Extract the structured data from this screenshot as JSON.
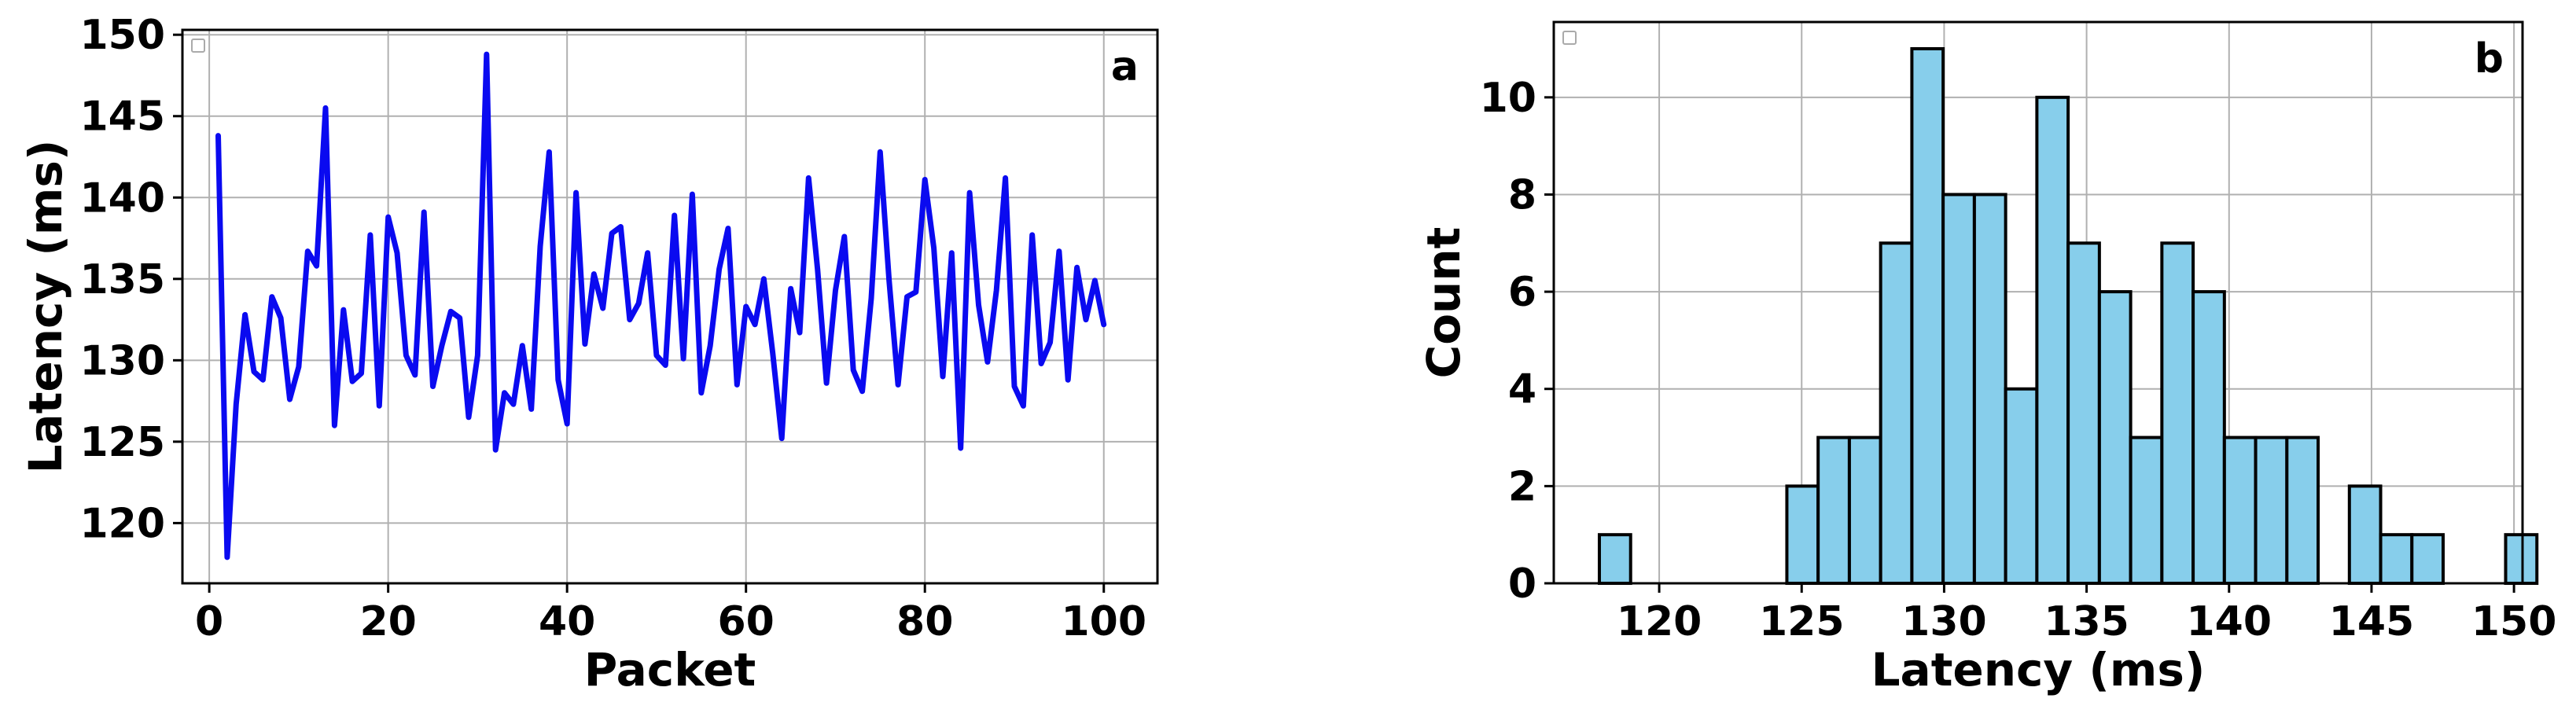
{
  "chart_data": [
    {
      "type": "line",
      "panel_label": "a",
      "xlabel": "Packet",
      "ylabel": "Latency (ms)",
      "xlim": [
        -3,
        106
      ],
      "ylim": [
        116.3,
        150.3
      ],
      "xticks": [
        0,
        20,
        40,
        60,
        80,
        100
      ],
      "yticks": [
        120,
        125,
        130,
        135,
        140,
        145,
        150
      ],
      "grid": true,
      "legend": "top-left (empty)",
      "colors": {
        "line": "#0a0af0"
      },
      "series": [
        {
          "x": [
            1,
            2,
            3,
            4,
            5,
            6,
            7,
            8,
            9,
            10,
            11,
            12,
            13,
            14,
            15,
            16,
            17,
            18,
            19,
            20,
            21,
            22,
            23,
            24,
            25,
            26,
            27,
            28,
            29,
            30,
            31,
            32,
            33,
            34,
            35,
            36,
            37,
            38,
            39,
            40,
            41,
            42,
            43,
            44,
            45,
            46,
            47,
            48,
            49,
            50,
            51,
            52,
            53,
            54,
            55,
            56,
            57,
            58,
            59,
            60,
            61,
            62,
            63,
            64,
            65,
            66,
            67,
            68,
            69,
            70,
            71,
            72,
            73,
            74,
            75,
            76,
            77,
            78,
            79,
            80,
            81,
            82,
            83,
            84,
            85,
            86,
            87,
            88,
            89,
            90,
            91,
            92,
            93,
            94,
            95,
            96,
            97,
            98,
            99,
            100
          ],
          "values": [
            143.8,
            117.9,
            127.3,
            132.8,
            129.3,
            128.8,
            133.9,
            132.6,
            127.6,
            129.6,
            136.7,
            135.8,
            145.5,
            126.0,
            133.1,
            128.7,
            129.2,
            137.7,
            127.2,
            138.8,
            136.6,
            130.3,
            129.1,
            139.1,
            128.4,
            130.9,
            133.0,
            132.6,
            126.5,
            130.3,
            148.8,
            124.5,
            128.0,
            127.3,
            130.9,
            127.0,
            137.0,
            142.8,
            128.8,
            126.1,
            140.3,
            131.0,
            135.3,
            133.2,
            137.8,
            138.2,
            132.5,
            133.5,
            136.6,
            130.3,
            129.7,
            138.9,
            130.1,
            140.2,
            128.0,
            130.9,
            135.6,
            138.1,
            128.5,
            133.3,
            132.2,
            135.0,
            130.4,
            125.2,
            134.4,
            131.7,
            141.2,
            135.6,
            128.6,
            134.3,
            137.6,
            129.4,
            128.1,
            133.8,
            142.8,
            134.9,
            128.5,
            133.9,
            134.2,
            141.1,
            136.9,
            129.0,
            136.6,
            124.6,
            140.3,
            133.4,
            129.9,
            134.3,
            141.2,
            128.4,
            127.2,
            137.7,
            129.8,
            131.1,
            136.7,
            128.8,
            135.7,
            132.5,
            134.9,
            132.2
          ]
        }
      ]
    },
    {
      "type": "bar",
      "panel_label": "b",
      "xlabel": "Latency (ms)",
      "ylabel": "Count",
      "xlim": [
        116.3,
        150.3
      ],
      "ylim": [
        0,
        11.55
      ],
      "xticks": [
        120,
        125,
        130,
        135,
        140,
        145,
        150
      ],
      "yticks": [
        0,
        2,
        4,
        6,
        8,
        10
      ],
      "grid": true,
      "legend": "top-left (empty)",
      "colors": {
        "bar": "#87ceeb",
        "edge": "#000000"
      },
      "bin_start": 117.9,
      "bin_width": 1.0968,
      "values": [
        1,
        0,
        0,
        0,
        0,
        0,
        2,
        3,
        3,
        7,
        11,
        8,
        8,
        4,
        10,
        7,
        6,
        3,
        7,
        6,
        3,
        3,
        3,
        0,
        2,
        1,
        1,
        0,
        0,
        1
      ]
    }
  ]
}
